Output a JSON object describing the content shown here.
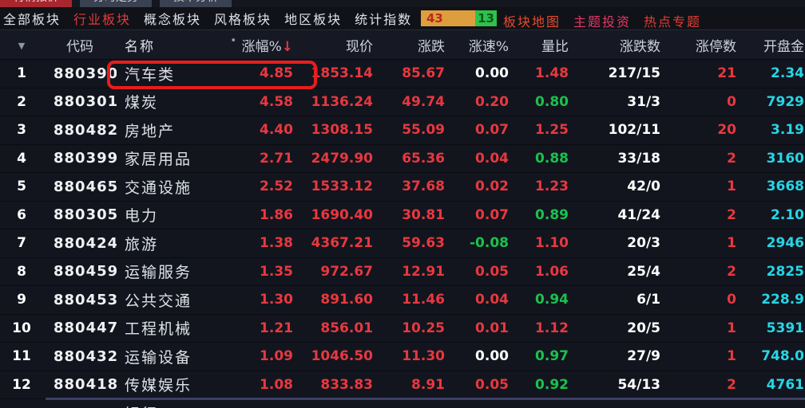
{
  "top_tabs": {
    "tab1": "行情报价",
    "tab2": "分时走势",
    "tab3": "技术分析"
  },
  "nav": {
    "items": [
      "全部板块",
      "行业板块",
      "概念板块",
      "风格板块",
      "地区板块",
      "统计指数"
    ],
    "active_item": "行业板块",
    "badge_up_count": "43",
    "badge_down_count": "13",
    "links": [
      "板块地图",
      "主题投资",
      "热点专题"
    ]
  },
  "colors": {
    "up_red": "#e8383f",
    "down_green": "#19c24e",
    "amount_cyan": "#27d5e5",
    "badge_orange": "#df9e3e",
    "badge_green": "#2fc14c",
    "annotation_red": "#e81d1d"
  },
  "table": {
    "headers": {
      "caret": "▼",
      "code": "代码",
      "name": "名称",
      "dot": "•",
      "pct": "涨幅%",
      "sort_arrow": "↓",
      "price": "现价",
      "change": "涨跌",
      "speed": "涨速%",
      "ratio": "量比",
      "updown": "涨跌数",
      "limit": "涨停数",
      "open": "开盘金"
    },
    "rows": [
      {
        "num": "1",
        "code": "880390",
        "name": "汽车类",
        "pct": "4.85",
        "price": "1853.14",
        "change": "85.67",
        "speed": "0.00",
        "speed_color": "white",
        "ratio": "1.48",
        "ratio_color": "red",
        "updown": "217/15",
        "limit": "21",
        "open": "2.34"
      },
      {
        "num": "2",
        "code": "880301",
        "name": "煤炭",
        "pct": "4.58",
        "price": "1136.24",
        "change": "49.74",
        "speed": "0.20",
        "speed_color": "red",
        "ratio": "0.80",
        "ratio_color": "green",
        "updown": "31/3",
        "limit": "0",
        "open": "7929"
      },
      {
        "num": "3",
        "code": "880482",
        "name": "房地产",
        "pct": "4.40",
        "price": "1308.15",
        "change": "55.09",
        "speed": "0.07",
        "speed_color": "red",
        "ratio": "1.25",
        "ratio_color": "red",
        "updown": "102/11",
        "limit": "20",
        "open": "3.19"
      },
      {
        "num": "4",
        "code": "880399",
        "name": "家居用品",
        "pct": "2.71",
        "price": "2479.90",
        "change": "65.36",
        "speed": "0.04",
        "speed_color": "red",
        "ratio": "0.88",
        "ratio_color": "green",
        "updown": "33/18",
        "limit": "2",
        "open": "3160"
      },
      {
        "num": "5",
        "code": "880465",
        "name": "交通设施",
        "pct": "2.52",
        "price": "1533.12",
        "change": "37.68",
        "speed": "0.02",
        "speed_color": "red",
        "ratio": "1.23",
        "ratio_color": "red",
        "updown": "42/0",
        "limit": "1",
        "open": "3668"
      },
      {
        "num": "6",
        "code": "880305",
        "name": "电力",
        "pct": "1.86",
        "price": "1690.40",
        "change": "30.81",
        "speed": "0.07",
        "speed_color": "red",
        "ratio": "0.89",
        "ratio_color": "green",
        "updown": "41/24",
        "limit": "2",
        "open": "2.10"
      },
      {
        "num": "7",
        "code": "880424",
        "name": "旅游",
        "pct": "1.38",
        "price": "4367.21",
        "change": "59.63",
        "speed": "-0.08",
        "speed_color": "green",
        "ratio": "1.10",
        "ratio_color": "red",
        "updown": "20/3",
        "limit": "1",
        "open": "2946"
      },
      {
        "num": "8",
        "code": "880459",
        "name": "运输服务",
        "pct": "1.35",
        "price": "972.67",
        "change": "12.91",
        "speed": "0.05",
        "speed_color": "red",
        "ratio": "1.06",
        "ratio_color": "red",
        "updown": "25/4",
        "limit": "2",
        "open": "2825"
      },
      {
        "num": "9",
        "code": "880453",
        "name": "公共交通",
        "pct": "1.30",
        "price": "891.60",
        "change": "11.46",
        "speed": "0.04",
        "speed_color": "red",
        "ratio": "0.94",
        "ratio_color": "green",
        "updown": "6/1",
        "limit": "0",
        "open": "228.9"
      },
      {
        "num": "10",
        "code": "880447",
        "name": "工程机械",
        "pct": "1.21",
        "price": "856.01",
        "change": "10.25",
        "speed": "0.01",
        "speed_color": "red",
        "ratio": "1.12",
        "ratio_color": "red",
        "updown": "20/5",
        "limit": "1",
        "open": "5391"
      },
      {
        "num": "11",
        "code": "880432",
        "name": "运输设备",
        "pct": "1.09",
        "price": "1046.50",
        "change": "11.30",
        "speed": "0.00",
        "speed_color": "white",
        "ratio": "0.97",
        "ratio_color": "green",
        "updown": "27/9",
        "limit": "1",
        "open": "748.0"
      },
      {
        "num": "12",
        "code": "880418",
        "name": "传媒娱乐",
        "pct": "1.08",
        "price": "833.83",
        "change": "8.91",
        "speed": "0.05",
        "speed_color": "red",
        "ratio": "0.92",
        "ratio_color": "green",
        "updown": "54/13",
        "limit": "2",
        "open": "4761"
      }
    ],
    "next_row": {
      "name": "银行"
    }
  }
}
